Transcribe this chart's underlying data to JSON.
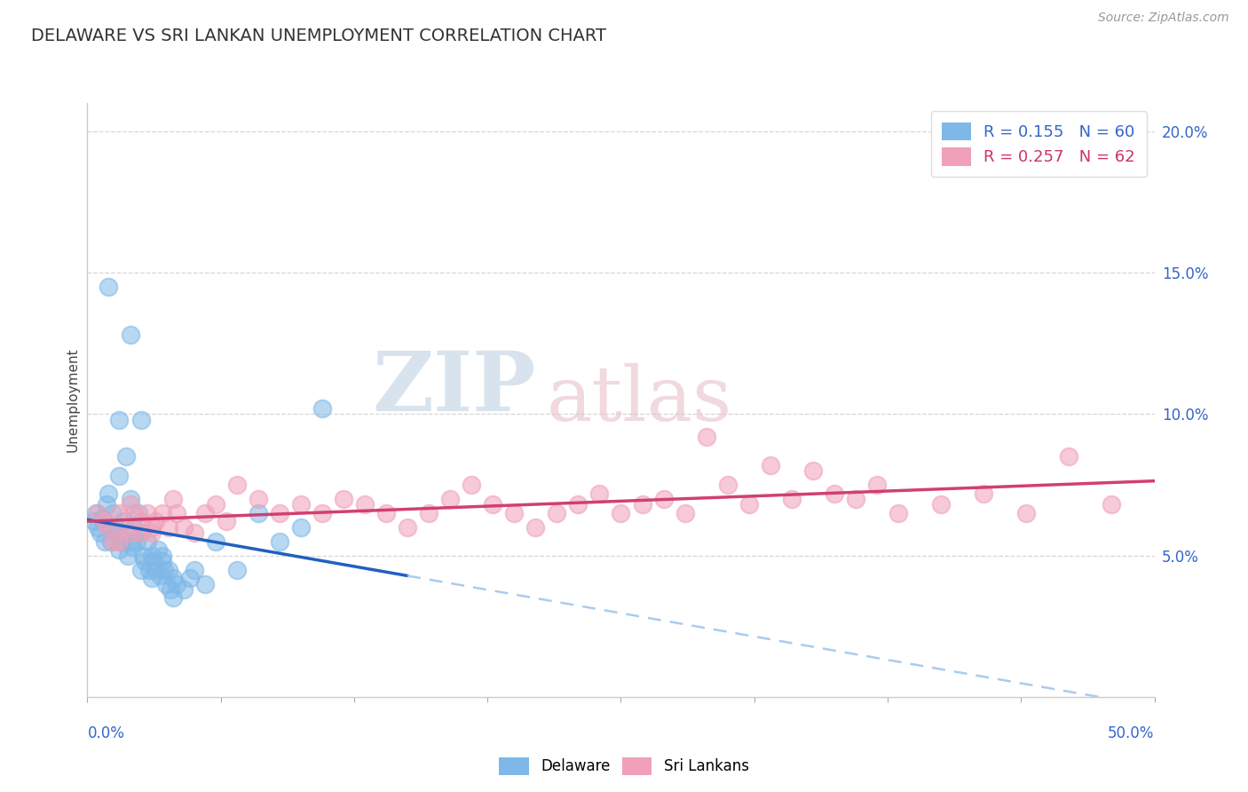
{
  "title": "DELAWARE VS SRI LANKAN UNEMPLOYMENT CORRELATION CHART",
  "source": "Source: ZipAtlas.com",
  "ylabel": "Unemployment",
  "xlim": [
    0,
    50
  ],
  "ylim": [
    0,
    21
  ],
  "yticks_right": [
    5.0,
    10.0,
    15.0,
    20.0
  ],
  "ytick_labels_right": [
    "5.0%",
    "10.0%",
    "15.0%",
    "20.0%"
  ],
  "delaware_color": "#7eb8e8",
  "srilanka_color": "#f0a0b8",
  "delaware_line_color": "#2060c0",
  "srilanka_line_color": "#d04070",
  "delaware_R": 0.155,
  "delaware_N": 60,
  "srilanka_R": 0.257,
  "srilanka_N": 62,
  "background_color": "#ffffff",
  "grid_color": "#cccccc",
  "watermark_zip": "ZIP",
  "watermark_atlas": "atlas",
  "delaware_points": [
    [
      0.3,
      6.2
    ],
    [
      0.4,
      6.5
    ],
    [
      0.5,
      6.0
    ],
    [
      0.6,
      5.8
    ],
    [
      0.7,
      6.3
    ],
    [
      0.8,
      5.5
    ],
    [
      0.9,
      6.8
    ],
    [
      1.0,
      7.2
    ],
    [
      1.0,
      6.0
    ],
    [
      1.1,
      5.5
    ],
    [
      1.2,
      6.5
    ],
    [
      1.3,
      6.0
    ],
    [
      1.4,
      5.8
    ],
    [
      1.5,
      7.8
    ],
    [
      1.5,
      5.2
    ],
    [
      1.6,
      5.5
    ],
    [
      1.7,
      6.2
    ],
    [
      1.8,
      8.5
    ],
    [
      1.9,
      5.0
    ],
    [
      2.0,
      5.5
    ],
    [
      2.0,
      7.0
    ],
    [
      2.1,
      5.3
    ],
    [
      2.2,
      6.0
    ],
    [
      2.3,
      5.5
    ],
    [
      2.4,
      6.5
    ],
    [
      2.5,
      5.8
    ],
    [
      2.5,
      4.5
    ],
    [
      2.6,
      5.0
    ],
    [
      2.7,
      4.8
    ],
    [
      2.8,
      5.5
    ],
    [
      2.9,
      4.5
    ],
    [
      3.0,
      5.0
    ],
    [
      3.0,
      4.2
    ],
    [
      3.1,
      4.8
    ],
    [
      3.2,
      4.5
    ],
    [
      3.3,
      5.2
    ],
    [
      3.4,
      4.3
    ],
    [
      3.5,
      4.8
    ],
    [
      3.5,
      5.0
    ],
    [
      3.6,
      4.5
    ],
    [
      3.7,
      4.0
    ],
    [
      3.8,
      4.5
    ],
    [
      3.9,
      3.8
    ],
    [
      4.0,
      4.2
    ],
    [
      4.0,
      3.5
    ],
    [
      4.2,
      4.0
    ],
    [
      4.5,
      3.8
    ],
    [
      4.8,
      4.2
    ],
    [
      5.0,
      4.5
    ],
    [
      5.5,
      4.0
    ],
    [
      6.0,
      5.5
    ],
    [
      7.0,
      4.5
    ],
    [
      8.0,
      6.5
    ],
    [
      9.0,
      5.5
    ],
    [
      10.0,
      6.0
    ],
    [
      11.0,
      10.2
    ],
    [
      1.0,
      14.5
    ],
    [
      2.0,
      12.8
    ],
    [
      1.5,
      9.8
    ],
    [
      2.5,
      9.8
    ]
  ],
  "srilanka_points": [
    [
      0.5,
      6.5
    ],
    [
      0.8,
      6.2
    ],
    [
      1.0,
      6.0
    ],
    [
      1.2,
      5.5
    ],
    [
      1.5,
      6.5
    ],
    [
      1.5,
      5.5
    ],
    [
      1.8,
      6.0
    ],
    [
      2.0,
      5.8
    ],
    [
      2.0,
      6.8
    ],
    [
      2.2,
      6.5
    ],
    [
      2.5,
      6.2
    ],
    [
      2.5,
      5.8
    ],
    [
      2.8,
      6.5
    ],
    [
      3.0,
      6.0
    ],
    [
      3.0,
      5.8
    ],
    [
      3.2,
      6.2
    ],
    [
      3.5,
      6.5
    ],
    [
      3.8,
      6.0
    ],
    [
      4.0,
      7.0
    ],
    [
      4.2,
      6.5
    ],
    [
      4.5,
      6.0
    ],
    [
      5.0,
      5.8
    ],
    [
      5.5,
      6.5
    ],
    [
      6.0,
      6.8
    ],
    [
      6.5,
      6.2
    ],
    [
      7.0,
      7.5
    ],
    [
      8.0,
      7.0
    ],
    [
      9.0,
      6.5
    ],
    [
      10.0,
      6.8
    ],
    [
      11.0,
      6.5
    ],
    [
      12.0,
      7.0
    ],
    [
      13.0,
      6.8
    ],
    [
      14.0,
      6.5
    ],
    [
      15.0,
      6.0
    ],
    [
      16.0,
      6.5
    ],
    [
      17.0,
      7.0
    ],
    [
      18.0,
      7.5
    ],
    [
      19.0,
      6.8
    ],
    [
      20.0,
      6.5
    ],
    [
      21.0,
      6.0
    ],
    [
      22.0,
      6.5
    ],
    [
      23.0,
      6.8
    ],
    [
      24.0,
      7.2
    ],
    [
      25.0,
      6.5
    ],
    [
      26.0,
      6.8
    ],
    [
      27.0,
      7.0
    ],
    [
      28.0,
      6.5
    ],
    [
      29.0,
      9.2
    ],
    [
      30.0,
      7.5
    ],
    [
      31.0,
      6.8
    ],
    [
      32.0,
      8.2
    ],
    [
      33.0,
      7.0
    ],
    [
      34.0,
      8.0
    ],
    [
      35.0,
      7.2
    ],
    [
      36.0,
      7.0
    ],
    [
      37.0,
      7.5
    ],
    [
      38.0,
      6.5
    ],
    [
      40.0,
      6.8
    ],
    [
      42.0,
      7.2
    ],
    [
      44.0,
      6.5
    ],
    [
      46.0,
      8.5
    ],
    [
      48.0,
      6.8
    ]
  ]
}
